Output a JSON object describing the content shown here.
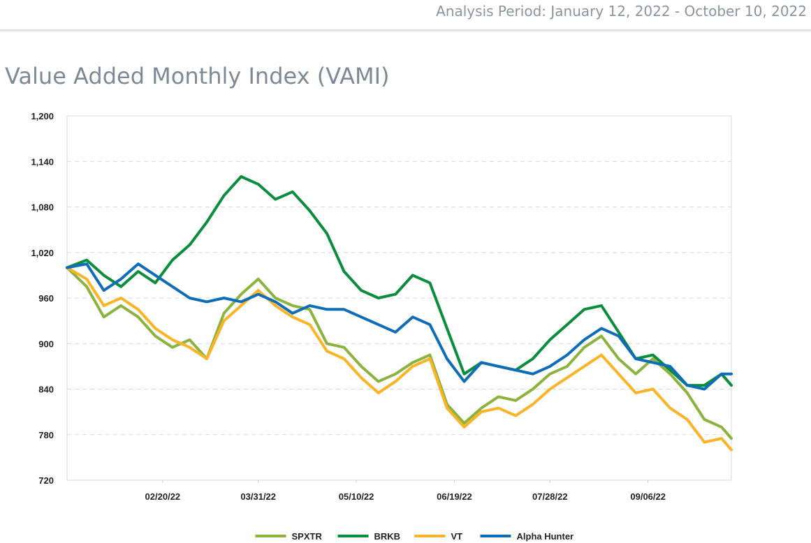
{
  "header": {
    "analysis_period": "Analysis Period: January 12, 2022 - October 10, 2022"
  },
  "page_title": "Value Added Monthly Index (VAMI)",
  "chart_data": {
    "type": "line",
    "title": "Value Added Monthly Index (VAMI)",
    "xlabel": "",
    "ylabel": "",
    "ylim": [
      720,
      1200
    ],
    "y_ticks": [
      "1,200",
      "1,140",
      "1,080",
      "1,020",
      "960",
      "900",
      "840",
      "780",
      "720"
    ],
    "x_ticks": [
      "02/20/22",
      "03/31/22",
      "05/10/22",
      "06/19/22",
      "07/28/22",
      "09/06/22"
    ],
    "xlim": [
      "01/12/22",
      "10/10/22"
    ],
    "grid": "horizontal-dashed",
    "legend_position": "bottom",
    "series": [
      {
        "name": "SPXTR",
        "color": "#8db33f",
        "points": [
          [
            "01/12/22",
            1000
          ],
          [
            "01/20/22",
            975
          ],
          [
            "01/27/22",
            935
          ],
          [
            "02/03/22",
            950
          ],
          [
            "02/10/22",
            935
          ],
          [
            "02/17/22",
            910
          ],
          [
            "02/24/22",
            895
          ],
          [
            "03/03/22",
            905
          ],
          [
            "03/10/22",
            880
          ],
          [
            "03/17/22",
            940
          ],
          [
            "03/24/22",
            965
          ],
          [
            "03/31/22",
            985
          ],
          [
            "04/07/22",
            960
          ],
          [
            "04/14/22",
            950
          ],
          [
            "04/21/22",
            945
          ],
          [
            "04/28/22",
            900
          ],
          [
            "05/05/22",
            895
          ],
          [
            "05/12/22",
            870
          ],
          [
            "05/19/22",
            850
          ],
          [
            "05/26/22",
            860
          ],
          [
            "06/02/22",
            875
          ],
          [
            "06/09/22",
            885
          ],
          [
            "06/16/22",
            820
          ],
          [
            "06/23/22",
            795
          ],
          [
            "06/30/22",
            815
          ],
          [
            "07/07/22",
            830
          ],
          [
            "07/14/22",
            825
          ],
          [
            "07/21/22",
            840
          ],
          [
            "07/28/22",
            860
          ],
          [
            "08/04/22",
            870
          ],
          [
            "08/11/22",
            895
          ],
          [
            "08/18/22",
            910
          ],
          [
            "08/25/22",
            880
          ],
          [
            "09/01/22",
            860
          ],
          [
            "09/08/22",
            880
          ],
          [
            "09/15/22",
            860
          ],
          [
            "09/22/22",
            835
          ],
          [
            "09/29/22",
            800
          ],
          [
            "10/06/22",
            790
          ],
          [
            "10/10/22",
            775
          ]
        ]
      },
      {
        "name": "BRKB",
        "color": "#0a8d3c",
        "points": [
          [
            "01/12/22",
            1000
          ],
          [
            "01/20/22",
            1010
          ],
          [
            "01/27/22",
            990
          ],
          [
            "02/03/22",
            975
          ],
          [
            "02/10/22",
            995
          ],
          [
            "02/17/22",
            980
          ],
          [
            "02/24/22",
            1010
          ],
          [
            "03/03/22",
            1030
          ],
          [
            "03/10/22",
            1060
          ],
          [
            "03/17/22",
            1095
          ],
          [
            "03/24/22",
            1120
          ],
          [
            "03/31/22",
            1110
          ],
          [
            "04/07/22",
            1090
          ],
          [
            "04/14/22",
            1100
          ],
          [
            "04/21/22",
            1075
          ],
          [
            "04/28/22",
            1045
          ],
          [
            "05/05/22",
            995
          ],
          [
            "05/12/22",
            970
          ],
          [
            "05/19/22",
            960
          ],
          [
            "05/26/22",
            965
          ],
          [
            "06/02/22",
            990
          ],
          [
            "06/09/22",
            980
          ],
          [
            "06/16/22",
            920
          ],
          [
            "06/23/22",
            860
          ],
          [
            "06/30/22",
            875
          ],
          [
            "07/07/22",
            870
          ],
          [
            "07/14/22",
            865
          ],
          [
            "07/21/22",
            880
          ],
          [
            "07/28/22",
            905
          ],
          [
            "08/04/22",
            925
          ],
          [
            "08/11/22",
            945
          ],
          [
            "08/18/22",
            950
          ],
          [
            "08/25/22",
            915
          ],
          [
            "09/01/22",
            880
          ],
          [
            "09/08/22",
            885
          ],
          [
            "09/15/22",
            865
          ],
          [
            "09/22/22",
            845
          ],
          [
            "09/29/22",
            845
          ],
          [
            "10/06/22",
            860
          ],
          [
            "10/10/22",
            845
          ]
        ]
      },
      {
        "name": "VT",
        "color": "#fbb427",
        "points": [
          [
            "01/12/22",
            1000
          ],
          [
            "01/20/22",
            985
          ],
          [
            "01/27/22",
            950
          ],
          [
            "02/03/22",
            960
          ],
          [
            "02/10/22",
            945
          ],
          [
            "02/17/22",
            920
          ],
          [
            "02/24/22",
            905
          ],
          [
            "03/03/22",
            895
          ],
          [
            "03/10/22",
            880
          ],
          [
            "03/17/22",
            930
          ],
          [
            "03/24/22",
            950
          ],
          [
            "03/31/22",
            970
          ],
          [
            "04/07/22",
            950
          ],
          [
            "04/14/22",
            935
          ],
          [
            "04/21/22",
            925
          ],
          [
            "04/28/22",
            890
          ],
          [
            "05/05/22",
            880
          ],
          [
            "05/12/22",
            855
          ],
          [
            "05/19/22",
            835
          ],
          [
            "05/26/22",
            850
          ],
          [
            "06/02/22",
            870
          ],
          [
            "06/09/22",
            880
          ],
          [
            "06/16/22",
            815
          ],
          [
            "06/23/22",
            790
          ],
          [
            "06/30/22",
            810
          ],
          [
            "07/07/22",
            815
          ],
          [
            "07/14/22",
            805
          ],
          [
            "07/21/22",
            820
          ],
          [
            "07/28/22",
            840
          ],
          [
            "08/04/22",
            855
          ],
          [
            "08/11/22",
            870
          ],
          [
            "08/18/22",
            885
          ],
          [
            "08/25/22",
            860
          ],
          [
            "09/01/22",
            835
          ],
          [
            "09/08/22",
            840
          ],
          [
            "09/15/22",
            815
          ],
          [
            "09/22/22",
            800
          ],
          [
            "09/29/22",
            770
          ],
          [
            "10/06/22",
            775
          ],
          [
            "10/10/22",
            760
          ]
        ]
      },
      {
        "name": "Alpha Hunter",
        "color": "#0f6db8",
        "points": [
          [
            "01/12/22",
            1000
          ],
          [
            "01/20/22",
            1005
          ],
          [
            "01/27/22",
            970
          ],
          [
            "02/03/22",
            985
          ],
          [
            "02/10/22",
            1005
          ],
          [
            "02/17/22",
            990
          ],
          [
            "02/24/22",
            975
          ],
          [
            "03/03/22",
            960
          ],
          [
            "03/10/22",
            955
          ],
          [
            "03/17/22",
            960
          ],
          [
            "03/24/22",
            955
          ],
          [
            "03/31/22",
            965
          ],
          [
            "04/07/22",
            955
          ],
          [
            "04/14/22",
            940
          ],
          [
            "04/21/22",
            950
          ],
          [
            "04/28/22",
            945
          ],
          [
            "05/05/22",
            945
          ],
          [
            "05/12/22",
            935
          ],
          [
            "05/19/22",
            925
          ],
          [
            "05/26/22",
            915
          ],
          [
            "06/02/22",
            935
          ],
          [
            "06/09/22",
            925
          ],
          [
            "06/16/22",
            880
          ],
          [
            "06/23/22",
            850
          ],
          [
            "06/30/22",
            875
          ],
          [
            "07/07/22",
            870
          ],
          [
            "07/14/22",
            865
          ],
          [
            "07/21/22",
            860
          ],
          [
            "07/28/22",
            870
          ],
          [
            "08/04/22",
            885
          ],
          [
            "08/11/22",
            905
          ],
          [
            "08/18/22",
            920
          ],
          [
            "08/25/22",
            910
          ],
          [
            "09/01/22",
            880
          ],
          [
            "09/08/22",
            875
          ],
          [
            "09/15/22",
            870
          ],
          [
            "09/22/22",
            845
          ],
          [
            "09/29/22",
            840
          ],
          [
            "10/06/22",
            860
          ],
          [
            "10/10/22",
            860
          ]
        ]
      }
    ]
  }
}
